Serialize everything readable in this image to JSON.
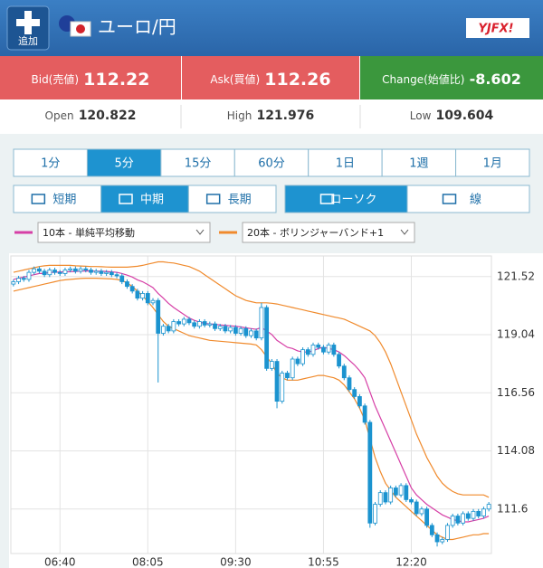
{
  "header": {
    "add_button": "追加",
    "title": "ユーロ/円",
    "logo": "YJFX!"
  },
  "quotes": {
    "bid_label": "Bid(売値)",
    "bid": "112.22",
    "ask_label": "Ask(買値)",
    "ask": "112.26",
    "change_label": "Change(始値比)",
    "change": "-8.602",
    "open_label": "Open",
    "open": "120.822",
    "high_label": "High",
    "high": "121.976",
    "low_label": "Low",
    "low": "109.604"
  },
  "timeframes": {
    "items": [
      "1分",
      "5分",
      "15分",
      "60分",
      "1日",
      "1週",
      "1月"
    ],
    "active": 1
  },
  "ranges": {
    "items": [
      "短期",
      "中期",
      "長期"
    ],
    "active": 1
  },
  "chart_types": {
    "items": [
      "ローソク",
      "線"
    ],
    "active": 0
  },
  "chart_data": {
    "type": "candlestick",
    "categories": [
      null,
      null,
      null,
      null,
      null,
      null,
      null,
      null,
      null,
      "06:40",
      null,
      null,
      null,
      null,
      null,
      null,
      null,
      null,
      null,
      null,
      null,
      null,
      null,
      null,
      null,
      null,
      "08:05",
      null,
      null,
      null,
      null,
      null,
      null,
      null,
      null,
      null,
      null,
      null,
      null,
      null,
      null,
      null,
      null,
      "09:30",
      null,
      null,
      null,
      null,
      null,
      null,
      null,
      null,
      null,
      null,
      null,
      null,
      null,
      null,
      null,
      null,
      "10:55",
      null,
      null,
      null,
      null,
      null,
      null,
      null,
      null,
      null,
      null,
      null,
      null,
      null,
      null,
      null,
      null,
      "12:20",
      null,
      null,
      null,
      null,
      null,
      null,
      null,
      null,
      null,
      null,
      null,
      null,
      null,
      null,
      null
    ],
    "open": [
      121.2,
      121.3,
      121.45,
      121.4,
      121.7,
      121.85,
      121.75,
      121.6,
      121.8,
      121.7,
      121.65,
      121.8,
      121.85,
      121.75,
      121.85,
      121.8,
      121.7,
      121.75,
      121.65,
      121.7,
      121.6,
      121.55,
      121.3,
      121.1,
      120.9,
      120.6,
      120.8,
      120.4,
      120.5,
      119.1,
      119.4,
      119.2,
      119.6,
      119.5,
      119.7,
      119.55,
      119.4,
      119.6,
      119.45,
      119.5,
      119.3,
      119.4,
      119.2,
      119.35,
      119.1,
      119.3,
      119.0,
      119.2,
      118.9,
      120.2,
      117.6,
      117.9,
      116.2,
      117.4,
      117.2,
      118.0,
      117.8,
      118.4,
      118.2,
      118.6,
      118.5,
      118.3,
      118.6,
      118.2,
      117.7,
      117.2,
      116.7,
      116.4,
      116.0,
      115.3,
      111.0,
      111.8,
      112.3,
      111.9,
      112.5,
      112.2,
      112.6,
      112.0,
      111.9,
      111.4,
      111.6,
      110.9,
      110.5,
      110.2,
      110.3,
      110.9,
      111.3,
      111.0,
      111.4,
      111.2,
      111.5,
      111.3,
      111.6
    ],
    "high": [
      121.4,
      121.55,
      121.55,
      121.8,
      121.95,
      121.95,
      121.85,
      121.9,
      121.9,
      121.8,
      121.9,
      121.95,
      121.95,
      121.95,
      121.95,
      121.9,
      121.85,
      121.85,
      121.8,
      121.8,
      121.7,
      121.65,
      121.4,
      121.2,
      121.0,
      120.9,
      120.9,
      120.6,
      120.6,
      119.5,
      119.5,
      119.7,
      119.7,
      119.8,
      119.8,
      119.65,
      119.7,
      119.7,
      119.6,
      119.6,
      119.5,
      119.5,
      119.45,
      119.45,
      119.4,
      119.4,
      119.3,
      119.3,
      120.4,
      120.3,
      118.0,
      118.0,
      117.5,
      117.5,
      118.1,
      118.1,
      118.5,
      118.5,
      118.7,
      118.7,
      118.6,
      118.7,
      118.7,
      118.3,
      117.8,
      117.3,
      116.8,
      116.5,
      116.1,
      115.4,
      111.9,
      112.4,
      112.4,
      112.6,
      112.6,
      112.7,
      112.7,
      112.1,
      112.0,
      111.7,
      111.7,
      111.0,
      110.6,
      110.4,
      111.0,
      111.4,
      111.4,
      111.5,
      111.5,
      111.6,
      111.6,
      111.7,
      111.9
    ],
    "low": [
      121.1,
      121.2,
      121.3,
      121.3,
      121.6,
      121.65,
      121.5,
      121.5,
      121.6,
      121.55,
      121.55,
      121.7,
      121.65,
      121.65,
      121.7,
      121.6,
      121.6,
      121.55,
      121.55,
      121.5,
      121.45,
      121.2,
      121.0,
      120.8,
      120.5,
      120.5,
      120.3,
      120.3,
      117.0,
      119.0,
      119.1,
      119.1,
      119.4,
      119.4,
      119.45,
      119.3,
      119.3,
      119.35,
      119.35,
      119.2,
      119.2,
      119.1,
      119.1,
      119.0,
      119.0,
      118.9,
      118.9,
      118.8,
      118.8,
      117.5,
      117.5,
      115.9,
      116.1,
      117.1,
      117.1,
      117.7,
      117.7,
      118.1,
      118.1,
      118.4,
      118.2,
      118.2,
      118.1,
      117.6,
      117.1,
      116.6,
      116.3,
      115.9,
      115.2,
      110.8,
      110.9,
      111.7,
      111.8,
      111.8,
      112.1,
      112.1,
      111.9,
      111.8,
      111.3,
      111.3,
      110.8,
      110.4,
      110.0,
      110.1,
      110.2,
      110.8,
      110.9,
      110.9,
      111.1,
      111.1,
      111.2,
      111.2,
      111.5
    ],
    "close": [
      121.3,
      121.45,
      121.4,
      121.7,
      121.85,
      121.75,
      121.6,
      121.8,
      121.7,
      121.65,
      121.8,
      121.85,
      121.75,
      121.85,
      121.8,
      121.7,
      121.75,
      121.65,
      121.7,
      121.6,
      121.55,
      121.3,
      121.1,
      120.9,
      120.6,
      120.8,
      120.4,
      120.5,
      119.1,
      119.4,
      119.2,
      119.6,
      119.5,
      119.7,
      119.55,
      119.4,
      119.6,
      119.45,
      119.5,
      119.3,
      119.4,
      119.2,
      119.35,
      119.1,
      119.3,
      119.0,
      119.2,
      118.9,
      120.2,
      117.6,
      117.9,
      116.2,
      117.4,
      117.2,
      118.0,
      117.8,
      118.4,
      118.2,
      118.6,
      118.5,
      118.3,
      118.6,
      118.2,
      117.7,
      117.2,
      116.7,
      116.4,
      116.0,
      115.3,
      111.0,
      111.8,
      112.3,
      111.9,
      112.5,
      112.2,
      112.6,
      112.0,
      111.9,
      111.4,
      111.6,
      110.9,
      110.5,
      110.2,
      110.3,
      110.9,
      111.3,
      111.0,
      111.4,
      111.2,
      111.5,
      111.3,
      111.6,
      111.8
    ],
    "candle_color": "#1b93cf",
    "series": [
      {
        "name": "10本 - 単純平均移動",
        "color": "#d63fa6",
        "values": [
          121.4,
          121.45,
          121.5,
          121.55,
          121.6,
          121.65,
          121.65,
          121.7,
          121.7,
          121.72,
          121.72,
          121.73,
          121.74,
          121.75,
          121.76,
          121.76,
          121.75,
          121.75,
          121.74,
          121.72,
          121.7,
          121.65,
          121.58,
          121.5,
          121.38,
          121.3,
          121.18,
          121.05,
          120.8,
          120.6,
          120.38,
          120.2,
          120.05,
          119.9,
          119.75,
          119.65,
          119.58,
          119.52,
          119.5,
          119.48,
          119.46,
          119.44,
          119.42,
          119.4,
          119.37,
          119.33,
          119.3,
          119.27,
          119.35,
          119.2,
          119.05,
          118.8,
          118.65,
          118.5,
          118.45,
          118.35,
          118.3,
          118.3,
          118.35,
          118.45,
          118.5,
          118.45,
          118.4,
          118.3,
          118.15,
          117.95,
          117.75,
          117.5,
          117.2,
          116.6,
          116.0,
          115.5,
          115.0,
          114.5,
          114.0,
          113.5,
          113.0,
          112.5,
          112.2,
          112.0,
          111.8,
          111.65,
          111.5,
          111.35,
          111.25,
          111.15,
          111.1,
          111.05,
          111.05,
          111.1,
          111.15,
          111.2,
          111.3
        ]
      },
      {
        "name": "20本 - ボリンジャーバンド+1",
        "color": "#f08a2c",
        "upper": [
          121.7,
          121.75,
          121.8,
          121.85,
          121.9,
          121.95,
          121.98,
          122.0,
          122.0,
          122.0,
          122.0,
          122.0,
          121.98,
          121.97,
          121.96,
          121.95,
          121.95,
          121.94,
          121.93,
          121.92,
          121.92,
          121.92,
          121.92,
          121.94,
          121.96,
          122.0,
          122.05,
          122.1,
          122.15,
          122.15,
          122.12,
          122.1,
          122.05,
          122.0,
          121.95,
          121.85,
          121.75,
          121.6,
          121.45,
          121.3,
          121.15,
          121.0,
          120.85,
          120.7,
          120.6,
          120.5,
          120.45,
          120.4,
          120.4,
          120.4,
          120.38,
          120.35,
          120.3,
          120.25,
          120.2,
          120.15,
          120.1,
          120.05,
          120.0,
          119.95,
          119.9,
          119.85,
          119.8,
          119.75,
          119.7,
          119.6,
          119.5,
          119.4,
          119.3,
          119.2,
          119.0,
          118.7,
          118.3,
          117.8,
          117.2,
          116.6,
          116.0,
          115.4,
          114.8,
          114.3,
          113.8,
          113.4,
          113.0,
          112.7,
          112.5,
          112.35,
          112.25,
          112.2,
          112.2,
          112.2,
          112.2,
          112.2,
          112.1
        ],
        "lower": [
          120.9,
          120.95,
          121.0,
          121.05,
          121.1,
          121.15,
          121.2,
          121.25,
          121.3,
          121.35,
          121.38,
          121.4,
          121.42,
          121.44,
          121.45,
          121.45,
          121.45,
          121.44,
          121.43,
          121.42,
          121.4,
          121.35,
          121.25,
          121.1,
          120.9,
          120.7,
          120.45,
          120.2,
          119.9,
          119.6,
          119.4,
          119.3,
          119.2,
          119.1,
          119.0,
          118.95,
          118.9,
          118.85,
          118.8,
          118.78,
          118.76,
          118.74,
          118.72,
          118.7,
          118.68,
          118.66,
          118.64,
          118.6,
          118.4,
          118.1,
          117.8,
          117.4,
          117.2,
          117.1,
          117.1,
          117.1,
          117.15,
          117.2,
          117.25,
          117.3,
          117.3,
          117.25,
          117.2,
          117.1,
          116.9,
          116.6,
          116.3,
          115.9,
          115.4,
          114.6,
          113.8,
          113.2,
          112.7,
          112.4,
          112.1,
          111.9,
          111.7,
          111.5,
          111.3,
          111.1,
          110.9,
          110.7,
          110.5,
          110.4,
          110.3,
          110.3,
          110.35,
          110.4,
          110.45,
          110.5,
          110.5,
          110.55,
          110.55
        ]
      }
    ],
    "ylim": [
      109.7,
      122.4
    ],
    "yticks": [
      111.6,
      114.08,
      116.56,
      119.04,
      121.52
    ],
    "grid": true
  }
}
